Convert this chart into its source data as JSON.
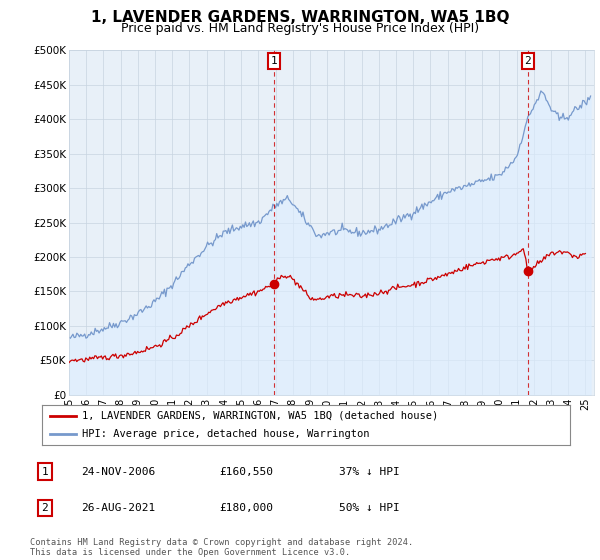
{
  "title": "1, LAVENDER GARDENS, WARRINGTON, WA5 1BQ",
  "subtitle": "Price paid vs. HM Land Registry's House Price Index (HPI)",
  "title_fontsize": 11,
  "subtitle_fontsize": 9,
  "ylim": [
    0,
    500000
  ],
  "yticks": [
    0,
    50000,
    100000,
    150000,
    200000,
    250000,
    300000,
    350000,
    400000,
    450000,
    500000
  ],
  "ytick_labels": [
    "£0",
    "£50K",
    "£100K",
    "£150K",
    "£200K",
    "£250K",
    "£300K",
    "£350K",
    "£400K",
    "£450K",
    "£500K"
  ],
  "xlim_start": 1995.0,
  "xlim_end": 2025.5,
  "sale1_x": 2006.9,
  "sale1_y": 160550,
  "sale2_x": 2021.65,
  "sale2_y": 180000,
  "red_line_color": "#cc0000",
  "blue_line_color": "#7799cc",
  "blue_fill_color": "#ddeeff",
  "chart_bg_color": "#e8f0f8",
  "legend_label_red": "1, LAVENDER GARDENS, WARRINGTON, WA5 1BQ (detached house)",
  "legend_label_blue": "HPI: Average price, detached house, Warrington",
  "table_row1": [
    "1",
    "24-NOV-2006",
    "£160,550",
    "37% ↓ HPI"
  ],
  "table_row2": [
    "2",
    "26-AUG-2021",
    "£180,000",
    "50% ↓ HPI"
  ],
  "footnote": "Contains HM Land Registry data © Crown copyright and database right 2024.\nThis data is licensed under the Open Government Licence v3.0.",
  "grid_color": "#c8d4e0"
}
